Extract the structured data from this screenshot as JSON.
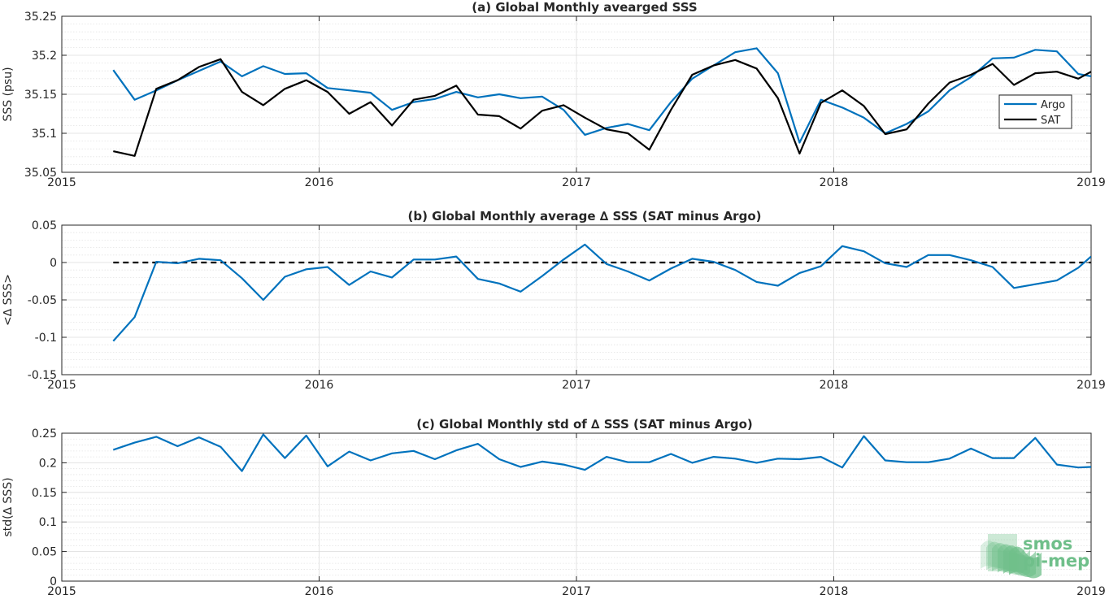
{
  "chart_data": [
    {
      "type": "line",
      "title": "(a) Global Monthly avearged SSS",
      "xlabel": "",
      "ylabel": "SSS (psu)",
      "xlim": [
        2015,
        2019
      ],
      "ylim": [
        35.05,
        35.25
      ],
      "xticks": [
        "2015",
        "2016",
        "2017",
        "2018",
        "2019"
      ],
      "yticks": [
        "35.05",
        "35.1",
        "35.15",
        "35.2",
        "35.25"
      ],
      "grid": true,
      "legend_position": "right",
      "x": [
        2015.2,
        2015.283,
        2015.367,
        2015.45,
        2015.533,
        2015.617,
        2015.7,
        2015.783,
        2015.867,
        2015.95,
        2016.033,
        2016.117,
        2016.2,
        2016.283,
        2016.367,
        2016.45,
        2016.533,
        2016.617,
        2016.7,
        2016.783,
        2016.867,
        2016.95,
        2017.033,
        2017.117,
        2017.2,
        2017.283,
        2017.367,
        2017.45,
        2017.533,
        2017.617,
        2017.7,
        2017.783,
        2017.867,
        2017.95,
        2018.033,
        2018.117,
        2018.2,
        2018.283,
        2018.367,
        2018.45,
        2018.533,
        2018.617,
        2018.7,
        2018.783,
        2018.867,
        2018.95,
        2019.0
      ],
      "series": [
        {
          "name": "Argo",
          "color": "#0072BD",
          "values": [
            35.181,
            35.143,
            35.155,
            35.168,
            35.18,
            35.192,
            35.173,
            35.186,
            35.176,
            35.177,
            35.158,
            35.155,
            35.152,
            35.13,
            35.14,
            35.144,
            35.153,
            35.146,
            35.15,
            35.145,
            35.147,
            35.13,
            35.098,
            35.107,
            35.112,
            35.104,
            35.14,
            35.17,
            35.187,
            35.204,
            35.209,
            35.177,
            35.088,
            35.143,
            35.133,
            35.12,
            35.1,
            35.112,
            35.128,
            35.155,
            35.172,
            35.196,
            35.197,
            35.207,
            35.205,
            35.176,
            35.173
          ]
        },
        {
          "name": "SAT",
          "color": "#000000",
          "values": [
            35.077,
            35.071,
            35.157,
            35.168,
            35.185,
            35.195,
            35.153,
            35.136,
            35.157,
            35.168,
            35.153,
            35.125,
            35.14,
            35.11,
            35.143,
            35.148,
            35.161,
            35.124,
            35.122,
            35.106,
            35.129,
            35.136,
            35.12,
            35.105,
            35.1,
            35.079,
            35.13,
            35.175,
            35.187,
            35.194,
            35.183,
            35.145,
            35.074,
            35.139,
            35.155,
            35.135,
            35.099,
            35.105,
            35.138,
            35.165,
            35.175,
            35.189,
            35.162,
            35.177,
            35.179,
            35.17,
            35.179
          ]
        }
      ]
    },
    {
      "type": "line",
      "title": "(b) Global Monthly average ∆ SSS (SAT minus Argo)",
      "xlabel": "",
      "ylabel": "<∆ SSS>",
      "xlim": [
        2015,
        2019
      ],
      "ylim": [
        -0.15,
        0.05
      ],
      "xticks": [
        "2015",
        "2016",
        "2017",
        "2018",
        "2019"
      ],
      "yticks": [
        "-0.15",
        "-0.1",
        "-0.05",
        "0",
        "0.05"
      ],
      "grid": true,
      "reference_line": {
        "y": 0,
        "color": "#000000",
        "style": "dashed"
      },
      "x": [
        2015.2,
        2015.283,
        2015.367,
        2015.45,
        2015.533,
        2015.617,
        2015.7,
        2015.783,
        2015.867,
        2015.95,
        2016.033,
        2016.117,
        2016.2,
        2016.283,
        2016.367,
        2016.45,
        2016.533,
        2016.617,
        2016.7,
        2016.783,
        2016.867,
        2016.95,
        2017.033,
        2017.117,
        2017.2,
        2017.283,
        2017.367,
        2017.45,
        2017.533,
        2017.617,
        2017.7,
        2017.783,
        2017.867,
        2017.95,
        2018.033,
        2018.117,
        2018.2,
        2018.283,
        2018.367,
        2018.45,
        2018.533,
        2018.617,
        2018.7,
        2018.783,
        2018.867,
        2018.95,
        2019.0
      ],
      "series": [
        {
          "color": "#0072BD",
          "values": [
            -0.105,
            -0.073,
            0.001,
            -0.001,
            0.005,
            0.003,
            -0.021,
            -0.05,
            -0.019,
            -0.009,
            -0.006,
            -0.03,
            -0.012,
            -0.02,
            0.004,
            0.004,
            0.008,
            -0.022,
            -0.028,
            -0.039,
            -0.018,
            0.004,
            0.024,
            -0.002,
            -0.012,
            -0.024,
            -0.008,
            0.005,
            0.001,
            -0.01,
            -0.026,
            -0.031,
            -0.014,
            -0.005,
            0.022,
            0.015,
            -0.001,
            -0.006,
            0.01,
            0.01,
            0.003,
            -0.006,
            -0.034,
            -0.029,
            -0.024,
            -0.007,
            0.008
          ]
        }
      ]
    },
    {
      "type": "line",
      "title": "(c) Global Monthly std of ∆ SSS (SAT minus Argo)",
      "xlabel": "",
      "ylabel": "std(∆ SSS)",
      "xlim": [
        2015,
        2019
      ],
      "ylim": [
        0,
        0.25
      ],
      "xticks": [
        "2015",
        "2016",
        "2017",
        "2018",
        "2019"
      ],
      "yticks": [
        "0",
        "0.05",
        "0.1",
        "0.15",
        "0.2",
        "0.25"
      ],
      "grid": true,
      "x": [
        2015.2,
        2015.283,
        2015.367,
        2015.45,
        2015.533,
        2015.617,
        2015.7,
        2015.783,
        2015.867,
        2015.95,
        2016.033,
        2016.117,
        2016.2,
        2016.283,
        2016.367,
        2016.45,
        2016.533,
        2016.617,
        2016.7,
        2016.783,
        2016.867,
        2016.95,
        2017.033,
        2017.117,
        2017.2,
        2017.283,
        2017.367,
        2017.45,
        2017.533,
        2017.617,
        2017.7,
        2017.783,
        2017.867,
        2017.95,
        2018.033,
        2018.117,
        2018.2,
        2018.283,
        2018.367,
        2018.45,
        2018.533,
        2018.617,
        2018.7,
        2018.783,
        2018.867,
        2018.95,
        2019.0
      ],
      "series": [
        {
          "color": "#0072BD",
          "values": [
            0.222,
            0.234,
            0.244,
            0.228,
            0.243,
            0.227,
            0.186,
            0.248,
            0.208,
            0.246,
            0.194,
            0.219,
            0.204,
            0.216,
            0.22,
            0.206,
            0.221,
            0.232,
            0.206,
            0.193,
            0.202,
            0.197,
            0.188,
            0.21,
            0.201,
            0.201,
            0.215,
            0.2,
            0.21,
            0.207,
            0.2,
            0.207,
            0.206,
            0.21,
            0.192,
            0.245,
            0.204,
            0.201,
            0.201,
            0.207,
            0.224,
            0.208,
            0.208,
            0.242,
            0.197,
            0.192,
            0.193
          ]
        }
      ]
    }
  ],
  "logo": {
    "line1": "smos",
    "line2": "pi-mep",
    "color": "#6fbf8a"
  }
}
